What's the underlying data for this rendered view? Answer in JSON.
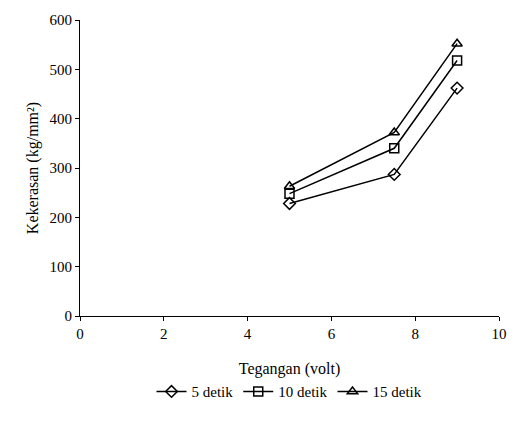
{
  "chart_data": {
    "type": "line",
    "x_label": "Tegangan (volt)",
    "y_label": "Kekerasan (kg/mm²)",
    "x": [
      5,
      7.5,
      9
    ],
    "series": [
      {
        "name": "5 detik",
        "color": "#000000",
        "marker": "diamond-open",
        "line_style": "solid",
        "values": [
          228,
          287,
          462
        ]
      },
      {
        "name": "10 detik",
        "color": "#000000",
        "marker": "square-open",
        "line_style": "solid",
        "values": [
          248,
          340,
          518
        ]
      },
      {
        "name": "15 detik",
        "color": "#000000",
        "marker": "triangle-up-open",
        "line_style": "solid",
        "values": [
          263,
          372,
          552
        ]
      }
    ],
    "xlim": [
      0,
      10
    ],
    "xticks": [
      0,
      2,
      4,
      6,
      8,
      10
    ],
    "ylim": [
      0,
      600
    ],
    "yticks": [
      0,
      100,
      200,
      300,
      400,
      500,
      600
    ],
    "grid": false,
    "legend": "bottom"
  }
}
